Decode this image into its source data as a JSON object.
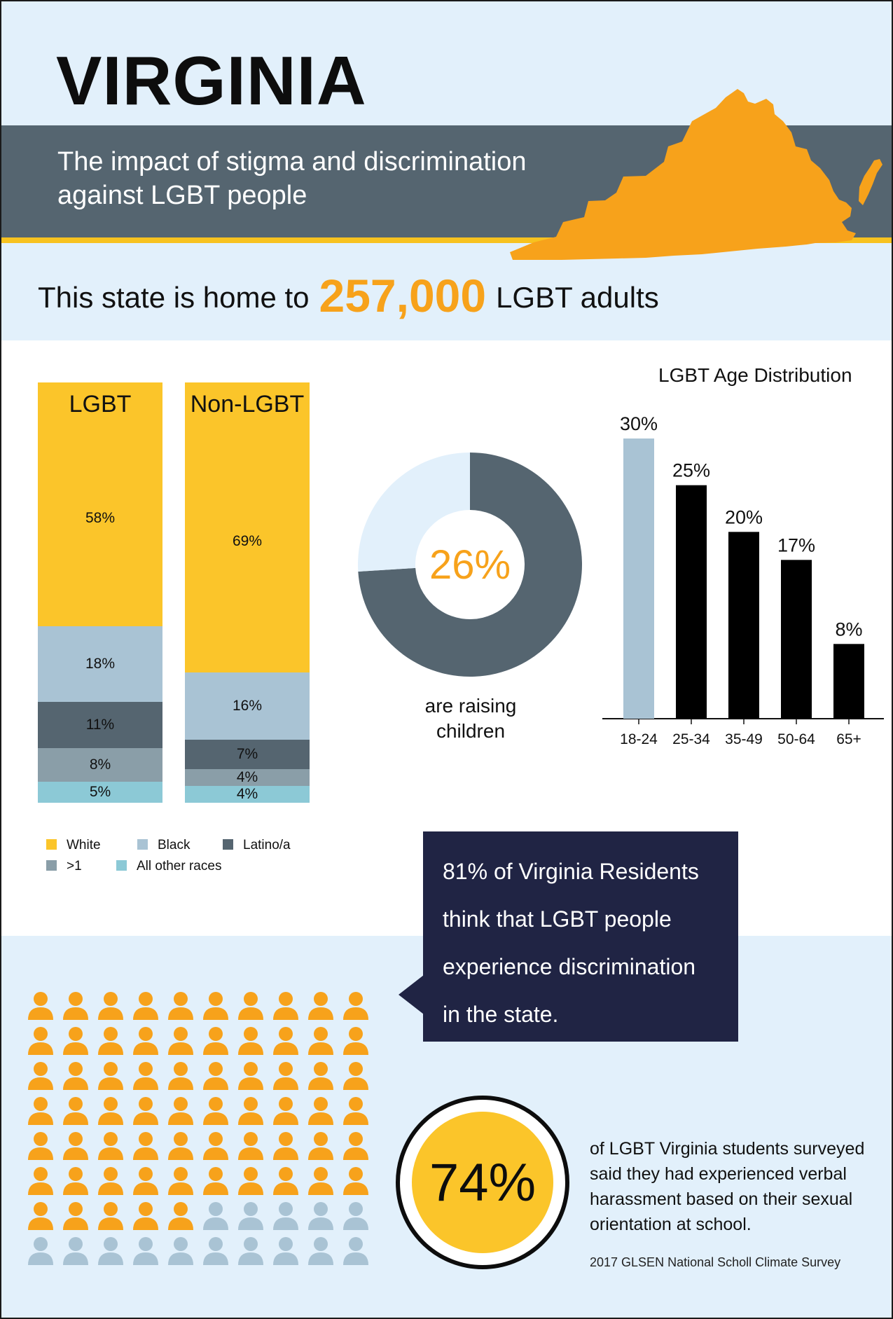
{
  "header": {
    "title": "VIRGINIA",
    "subtitle": "The impact of stigma and discrimination against LGBT people"
  },
  "population": {
    "prefix": "This state is home to",
    "number": "257,000",
    "suffix": "LGBT adults"
  },
  "colors": {
    "white": "#fbc52a",
    "black": "#a9c3d4",
    "latino": "#556570",
    "multi": "#8a9ea8",
    "other": "#8cc9d6",
    "orange": "#f7a21b",
    "navy": "#202444",
    "person_orange": "#f7a21b",
    "person_gray": "#a9c3d4"
  },
  "legend": {
    "items": [
      {
        "label": "White",
        "color": "#fbc52a"
      },
      {
        "label": "Black",
        "color": "#a9c3d4"
      },
      {
        "label": "Latino/a",
        "color": "#556570"
      },
      {
        "label": ">1",
        "color": "#8a9ea8"
      },
      {
        "label": "All other races",
        "color": "#8cc9d6"
      }
    ]
  },
  "donut": {
    "value_label": "26%",
    "caption_line1": "are raising",
    "caption_line2": "children"
  },
  "quote": {
    "line1": "81% of Virginia Residents",
    "line2": "think that LGBT people",
    "line3": "experience discrimination",
    "line4": "in the state."
  },
  "harassment": {
    "value_label": "74%",
    "text": "of LGBT Virginia students surveyed said they had experienced verbal harassment based on their sexual orientation at school.",
    "source": "2017 GLSEN National Scholl Climate Survey"
  },
  "people_chart": {
    "total": 80,
    "highlighted": 65
  },
  "chart_data": [
    {
      "type": "bar",
      "stacked": true,
      "categories": [
        "LGBT",
        "Non-LGBT"
      ],
      "series": [
        {
          "name": "White",
          "values": [
            58,
            69
          ],
          "labels": [
            "58%",
            "69%"
          ]
        },
        {
          "name": "Black",
          "values": [
            18,
            16
          ],
          "labels": [
            "18%",
            "16%"
          ]
        },
        {
          "name": "Latino/a",
          "values": [
            11,
            7
          ],
          "labels": [
            "11%",
            "7%"
          ]
        },
        {
          "name": ">1",
          "values": [
            8,
            4
          ],
          "labels": [
            "8%",
            "4%"
          ]
        },
        {
          "name": "All other races",
          "values": [
            5,
            4
          ],
          "labels": [
            "5%",
            "4%"
          ]
        }
      ],
      "legend_position": "bottom-left"
    },
    {
      "type": "pie",
      "donut": true,
      "values": [
        74,
        26
      ],
      "highlight_index": 0
    },
    {
      "type": "bar",
      "title": "LGBT Age Distribution",
      "categories": [
        "18-24",
        "25-34",
        "35-49",
        "50-64",
        "65+"
      ],
      "values": [
        30,
        25,
        20,
        17,
        8
      ],
      "labels": [
        "30%",
        "25%",
        "20%",
        "17%",
        "8%"
      ],
      "ylim": [
        0,
        30
      ]
    }
  ]
}
